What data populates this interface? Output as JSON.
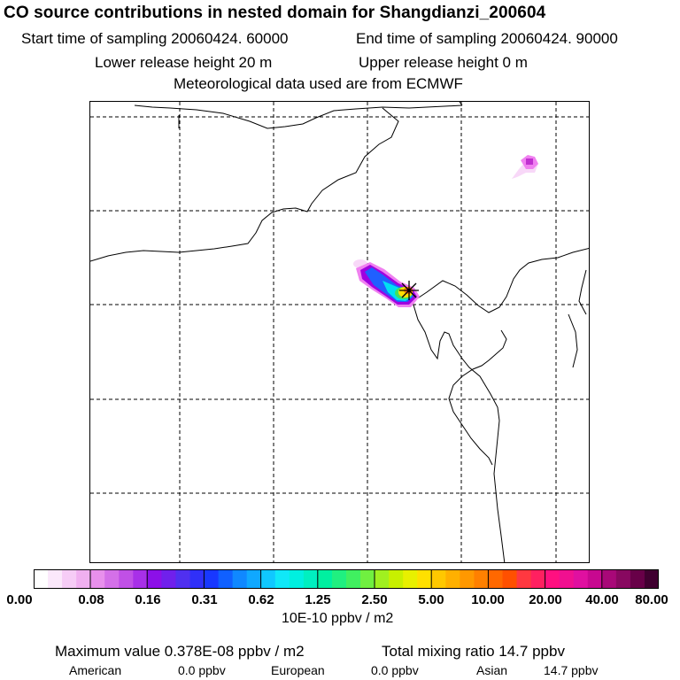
{
  "header": {
    "title": "CO  source contributions in nested domain for Shangdianzi_200604",
    "start_label": "Start time of sampling 20060424. 60000",
    "end_label": "End time of sampling 20060424. 90000",
    "lower_label": "Lower release height   20 m",
    "upper_label": "Upper release height    0 m",
    "met_label": "Meteorological data used are from ECMWF"
  },
  "map": {
    "station_marker": "Shangdianzi station (asterisk)",
    "colors": {
      "grid": "#000000",
      "coast": "#000000",
      "plume_magenta": "#f080f0",
      "plume_purple": "#a000e0",
      "plume_blue": "#2060ff",
      "plume_cyan": "#00e0f0",
      "plume_green": "#40e060",
      "plume_yellow": "#ffe000",
      "plume_orange": "#ff8000",
      "plume_red": "#ff2040"
    }
  },
  "colorbar": {
    "tick_labels": [
      "0.00",
      "0.08",
      "0.16",
      "0.31",
      "0.62",
      "1.25",
      "2.50",
      "5.00",
      "10.00",
      "20.00",
      "40.00",
      "80.00"
    ],
    "colors": [
      "#ffffff",
      "#fbe8fb",
      "#f6ccf6",
      "#f0b0f0",
      "#e890ec",
      "#d470e8",
      "#c050e6",
      "#a830e8",
      "#8c10e8",
      "#7020ec",
      "#5030f0",
      "#3030f8",
      "#1838ff",
      "#1060ff",
      "#1088ff",
      "#10a8ff",
      "#10c8ff",
      "#10e8f8",
      "#00f0e0",
      "#00f0c0",
      "#00f0a0",
      "#20f080",
      "#40f060",
      "#70f040",
      "#a0f020",
      "#c8f000",
      "#e8f000",
      "#ffe000",
      "#ffc800",
      "#ffb000",
      "#ff9800",
      "#ff8000",
      "#ff6800",
      "#ff5000",
      "#ff3840",
      "#ff2060",
      "#ff1080",
      "#f01090",
      "#e010a0",
      "#c80890",
      "#a80878",
      "#880860",
      "#680048",
      "#400030"
    ],
    "unit_label": "10E-10 ppbv / m2"
  },
  "summary": {
    "max_label": "Maximum value  0.378E-08 ppbv / m2",
    "total_label": "Total mixing ratio      14.7 ppbv",
    "american_label": "American",
    "american_value": "0.0 ppbv",
    "european_label": "European",
    "european_value": "0.0 ppbv",
    "asian_label": "Asian",
    "asian_value": "14.7 ppbv"
  }
}
